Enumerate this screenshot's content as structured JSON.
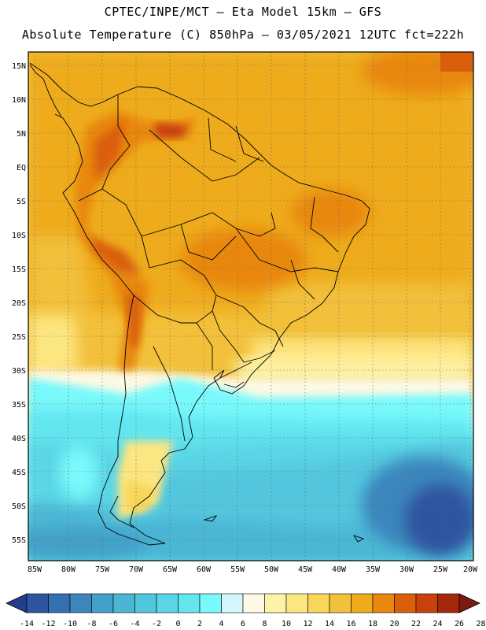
{
  "header": {
    "title_line1": "CPTEC/INPE/MCT –  Eta Model 15km – GFS",
    "title_line2": "Absolute Temperature (C) 850hPa – 03/05/2021 12UTC fct=222h"
  },
  "map": {
    "region": "South America",
    "lat_labels": [
      "15N",
      "10N",
      "5N",
      "EQ",
      "5S",
      "10S",
      "15S",
      "20S",
      "25S",
      "30S",
      "35S",
      "40S",
      "45S",
      "50S",
      "55S"
    ],
    "lon_labels": [
      "85W",
      "80W",
      "75W",
      "70W",
      "65W",
      "60W",
      "55W",
      "50W",
      "45W",
      "40W",
      "35W",
      "30W",
      "25W",
      "20W"
    ]
  },
  "colorbar": {
    "labels": [
      "-14",
      "-12",
      "-10",
      "-8",
      "-6",
      "-4",
      "-2",
      "0",
      "2",
      "4",
      "6",
      "8",
      "10",
      "12",
      "14",
      "16",
      "18",
      "20",
      "22",
      "24",
      "26",
      "28"
    ],
    "colors": [
      "#233c8c",
      "#2d55a0",
      "#3470b0",
      "#3b86bd",
      "#43a0c8",
      "#4bb6d4",
      "#52c6dd",
      "#5ad5e6",
      "#62e6ef",
      "#79f9fb",
      "#d3f5fc",
      "#fdf9e4",
      "#fdf3a6",
      "#fce681",
      "#f8d65a",
      "#f2c03a",
      "#eeab1b",
      "#e8870c",
      "#db5f0b",
      "#c9410a",
      "#a3280b",
      "#7a1a10"
    ]
  }
}
